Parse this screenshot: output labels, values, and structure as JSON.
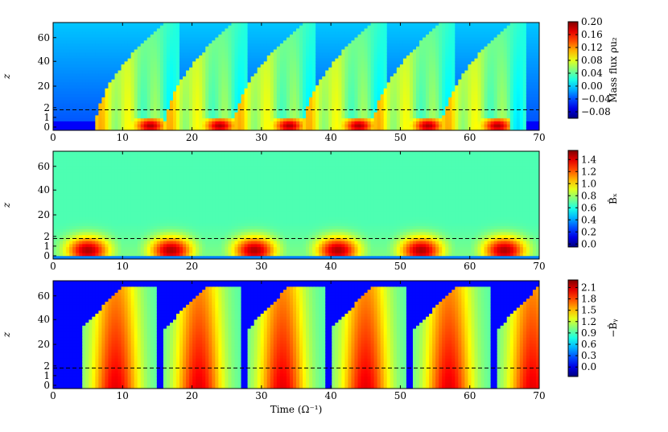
{
  "chart_data": [
    {
      "type": "heatmap",
      "xlim": [
        0,
        70
      ],
      "x_ticks": [
        0,
        10,
        20,
        30,
        40,
        50,
        60,
        70
      ],
      "y_tick_labels": [
        "0",
        "1",
        "2",
        "20",
        "40",
        "60"
      ],
      "ylabel": "z",
      "xlabel": "",
      "colorbar": {
        "label": "Mass flux ρu₂",
        "min": -0.1,
        "max": 0.2,
        "ticks": [
          -0.08,
          -0.04,
          0.0,
          0.04,
          0.08,
          0.12,
          0.16,
          0.2
        ],
        "tick_labels": [
          "−0.08",
          "−0.04",
          "0.00",
          "0.04",
          "0.08",
          "0.12",
          "0.16",
          "0.20"
        ]
      },
      "dashed_line_z": 2,
      "cycle_starts": [
        6,
        16,
        26,
        36,
        46,
        56
      ],
      "colormap": "jet"
    },
    {
      "type": "heatmap",
      "xlim": [
        0,
        70
      ],
      "x_ticks": [
        0,
        10,
        20,
        30,
        40,
        50,
        60,
        70
      ],
      "y_tick_labels": [
        "0",
        "1",
        "2",
        "20",
        "40",
        "60"
      ],
      "ylabel": "z",
      "xlabel": "",
      "colorbar": {
        "label": "B̂ₓ",
        "min": -0.05,
        "max": 1.55,
        "ticks": [
          0.0,
          0.2,
          0.4,
          0.6,
          0.8,
          1.0,
          1.2,
          1.4
        ],
        "tick_labels": [
          "0.0",
          "0.2",
          "0.4",
          "0.6",
          "0.8",
          "1.0",
          "1.2",
          "1.4"
        ]
      },
      "dashed_line_z": 2,
      "cycle_starts": [
        6,
        18,
        30,
        42,
        54,
        66
      ],
      "colormap": "jet"
    },
    {
      "type": "heatmap",
      "xlim": [
        0,
        70
      ],
      "x_ticks": [
        0,
        10,
        20,
        30,
        40,
        50,
        60,
        70
      ],
      "y_tick_labels": [
        "0",
        "1",
        "2",
        "20",
        "40",
        "60"
      ],
      "ylabel": "z",
      "xlabel": "Time (Ω⁻¹)",
      "colorbar": {
        "label": "−B̂ᵧ",
        "min": -0.25,
        "max": 2.3,
        "ticks": [
          0.0,
          0.3,
          0.6,
          0.9,
          1.2,
          1.5,
          1.8,
          2.1
        ],
        "tick_labels": [
          "0.0",
          "0.3",
          "0.6",
          "0.9",
          "1.2",
          "1.5",
          "1.8",
          "2.1"
        ]
      },
      "dashed_line_z": 2,
      "cycle_starts": [
        6,
        18,
        30,
        42,
        54,
        66
      ],
      "colormap": "jet"
    }
  ]
}
